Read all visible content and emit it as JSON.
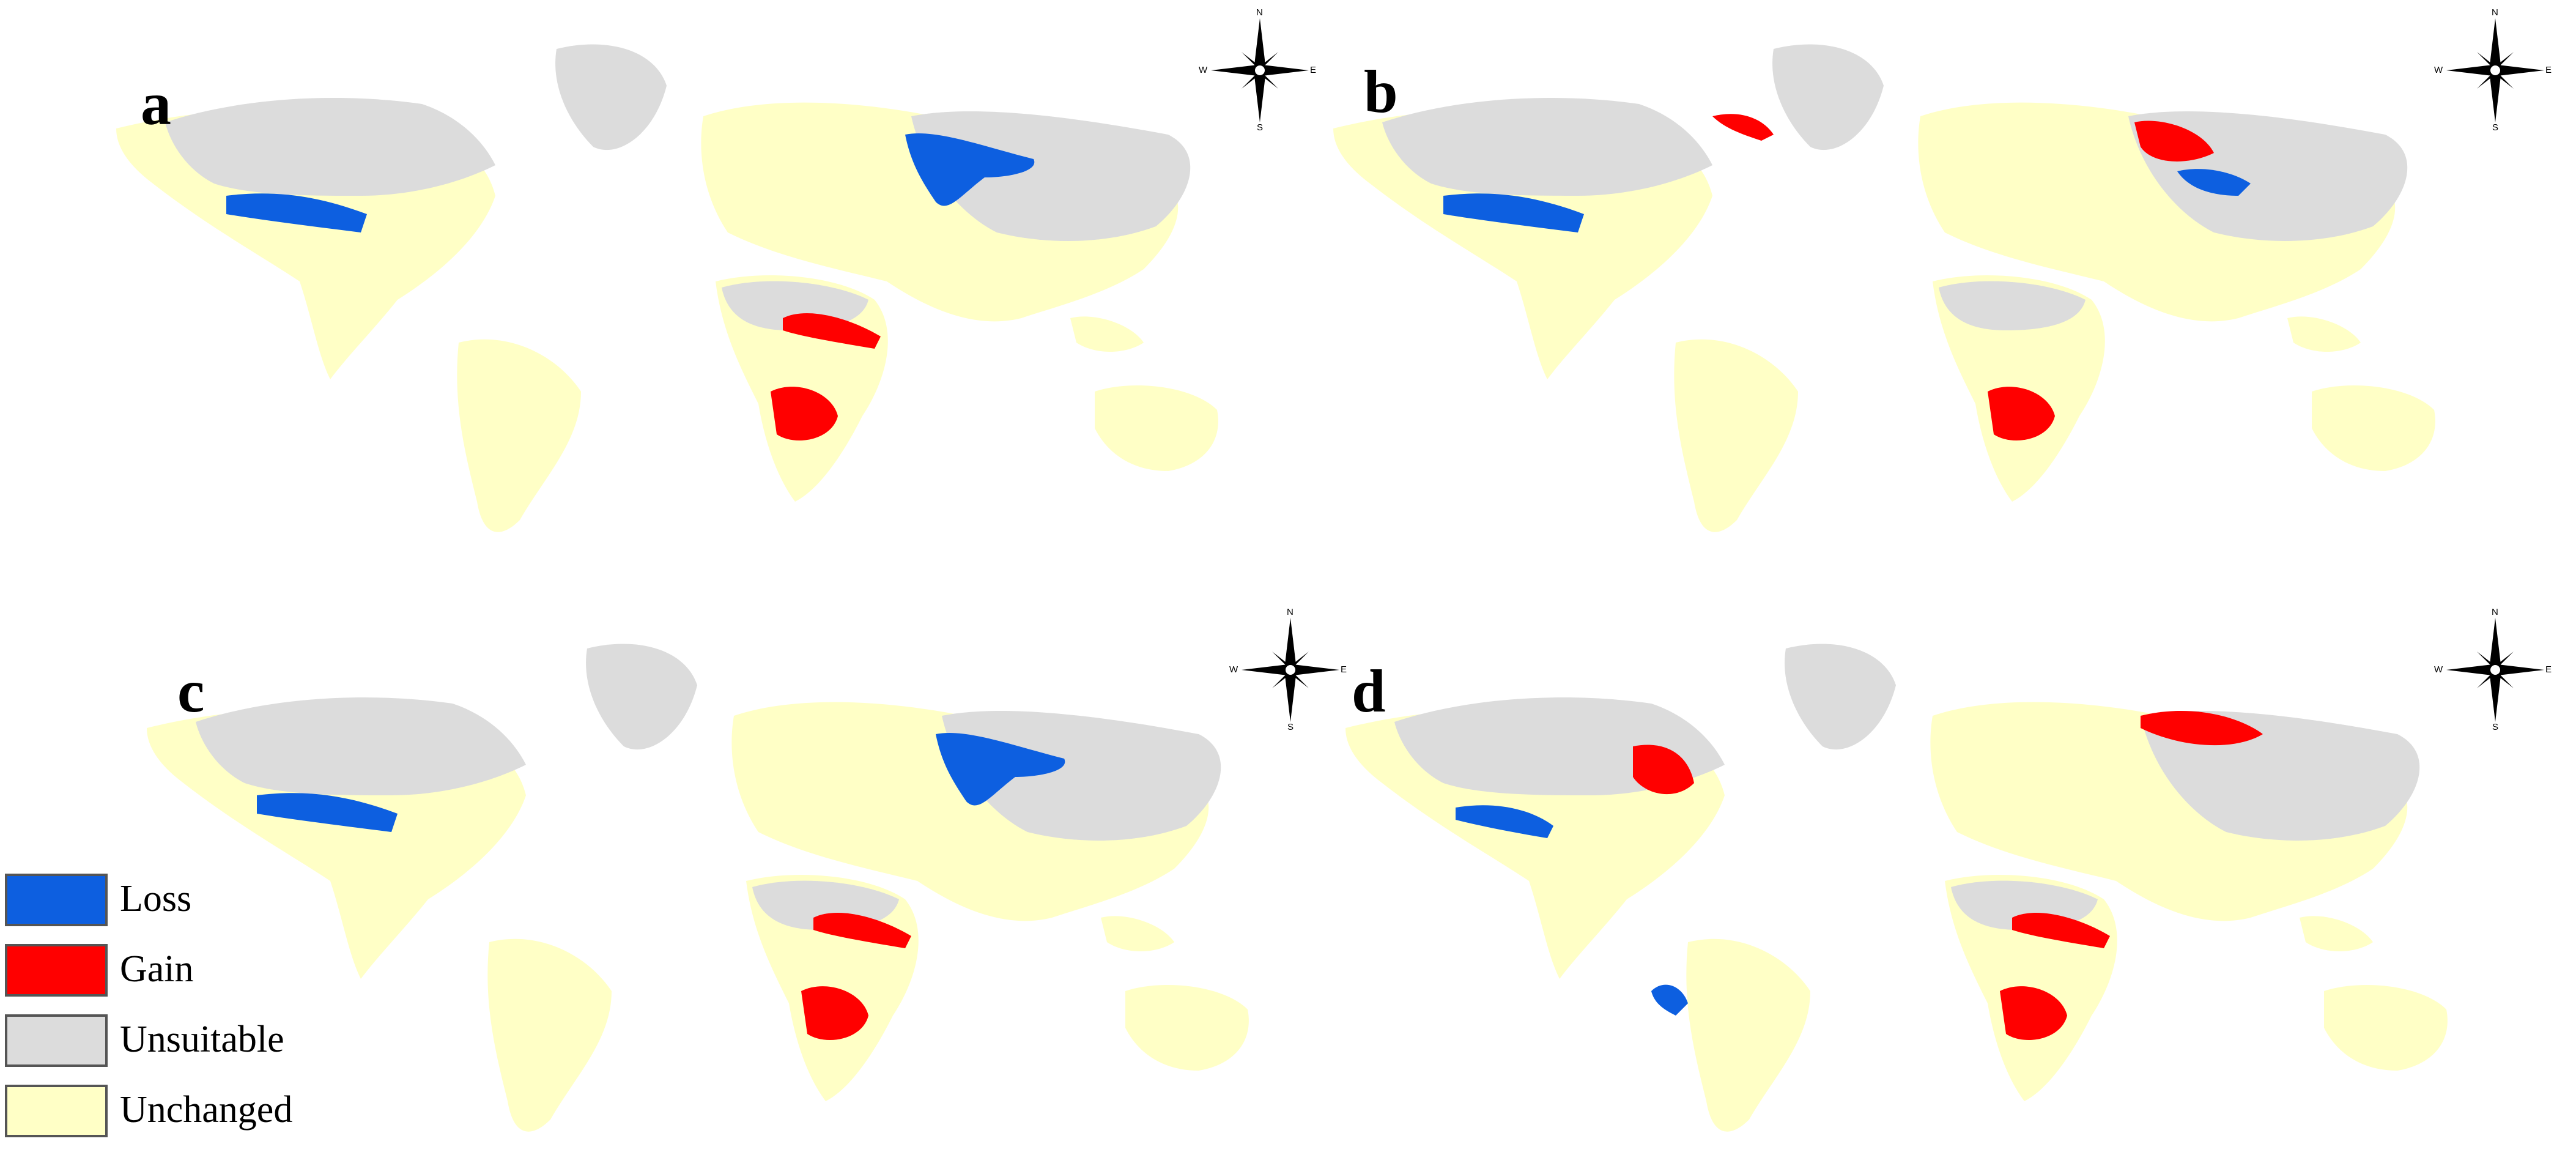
{
  "colors": {
    "loss": "#0d5fe0",
    "gain": "#ff0000",
    "unsuitable": "#dcdcdc",
    "unchanged": "#ffffc6",
    "background": "#ffffff"
  },
  "panels": [
    {
      "label": "a"
    },
    {
      "label": "b"
    },
    {
      "label": "c"
    },
    {
      "label": "d"
    }
  ],
  "compass": {
    "n": "N",
    "s": "S",
    "e": "E",
    "w": "W"
  },
  "legend": [
    {
      "label": "Loss",
      "color": "#0d5fe0"
    },
    {
      "label": "Gain",
      "color": "#ff0000"
    },
    {
      "label": "Unsuitable",
      "color": "#dcdcdc"
    },
    {
      "label": "Unchanged",
      "color": "#ffffc6"
    }
  ]
}
